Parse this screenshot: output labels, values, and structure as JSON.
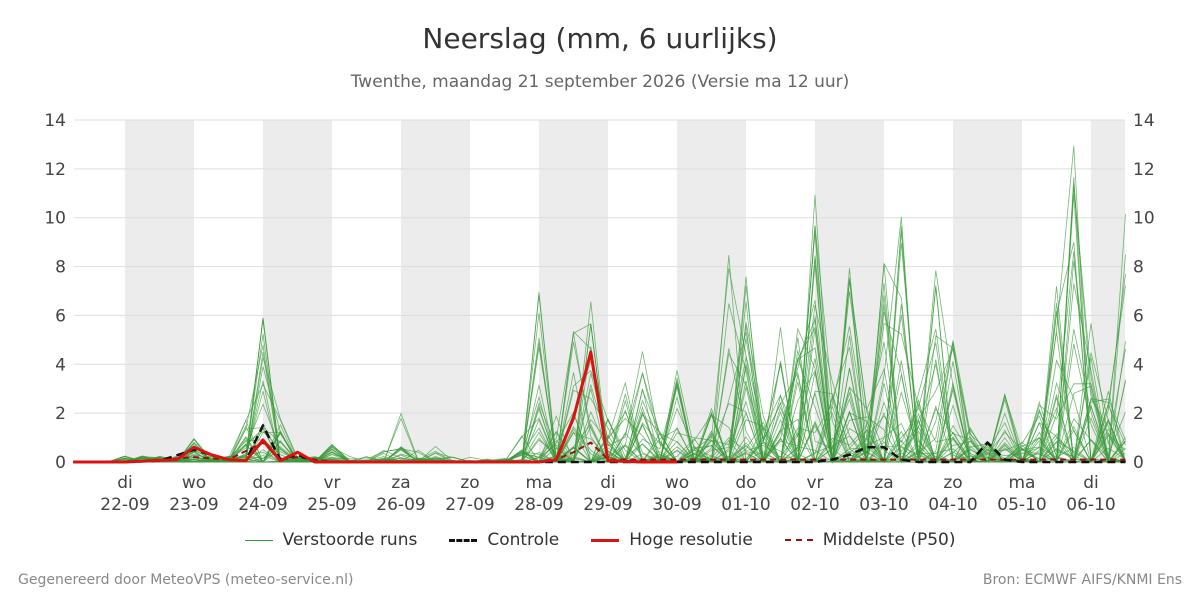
{
  "chart_data": {
    "type": "line",
    "title": "Neerslag (mm, 6 uurlijks)",
    "subtitle": "Twenthe, maandag 21 september 2026 (Versie ma 12 uur)",
    "ylim": [
      0,
      14
    ],
    "yticks": [
      0,
      2,
      4,
      6,
      8,
      10,
      12,
      14
    ],
    "xlim": [
      -0.5,
      14.5
    ],
    "x_ticks": [
      {
        "day": "di",
        "date": "22-09"
      },
      {
        "day": "wo",
        "date": "23-09"
      },
      {
        "day": "do",
        "date": "24-09"
      },
      {
        "day": "vr",
        "date": "25-09"
      },
      {
        "day": "za",
        "date": "26-09"
      },
      {
        "day": "zo",
        "date": "27-09"
      },
      {
        "day": "ma",
        "date": "28-09"
      },
      {
        "day": "di",
        "date": "29-09"
      },
      {
        "day": "wo",
        "date": "30-09"
      },
      {
        "day": "do",
        "date": "01-10"
      },
      {
        "day": "vr",
        "date": "02-10"
      },
      {
        "day": "za",
        "date": "03-10"
      },
      {
        "day": "zo",
        "date": "04-10"
      },
      {
        "day": "ma",
        "date": "05-10"
      },
      {
        "day": "di",
        "date": "06-10"
      }
    ],
    "shaded_days": [
      0,
      2,
      4,
      6,
      8,
      10,
      12,
      14
    ],
    "grid": true,
    "legend_position": "bottom",
    "colors": {
      "ensemble": "#3a9a3a",
      "control": "#111111",
      "hires": "#dd1111",
      "median": "#9b1111",
      "shade": "#ececec",
      "grid": "#dddddd"
    },
    "series": [
      {
        "name": "Controle",
        "style": "dashed",
        "x": [
          -0.75,
          0,
          0.5,
          1,
          1.25,
          1.5,
          1.75,
          2,
          2.25,
          2.5,
          2.75,
          3,
          4,
          5,
          6,
          7,
          8,
          9,
          10,
          10.25,
          10.5,
          10.75,
          11,
          11.25,
          11.5,
          12,
          12.25,
          12.5,
          12.75,
          13,
          14,
          14.5
        ],
        "y": [
          0,
          0,
          0.05,
          0.5,
          0.3,
          0.1,
          0.05,
          1.5,
          0.1,
          0.3,
          0,
          0,
          0,
          0,
          0,
          0,
          0,
          0,
          0,
          0.1,
          0.3,
          0.6,
          0.6,
          0.1,
          0,
          0,
          0,
          0.8,
          0.1,
          0,
          0,
          0
        ]
      },
      {
        "name": "Hoge resolutie",
        "style": "solid",
        "x": [
          -0.75,
          0,
          0.75,
          1,
          1.25,
          1.5,
          1.75,
          2,
          2.25,
          2.5,
          2.75,
          3,
          4,
          5,
          5.75,
          6,
          6.25,
          6.5,
          6.75,
          7,
          7.5,
          8
        ],
        "y": [
          0,
          0,
          0.1,
          0.6,
          0.3,
          0.1,
          0.05,
          0.9,
          0.05,
          0.4,
          0,
          0,
          0,
          0,
          0,
          0,
          0.1,
          1.8,
          4.5,
          0.05,
          0,
          0
        ]
      },
      {
        "name": "Middelste (P50)",
        "style": "dashed",
        "x": [
          -0.75,
          0,
          1,
          1.5,
          2,
          2.25,
          2.5,
          3,
          6,
          6.25,
          6.5,
          6.75,
          7,
          8,
          9,
          10,
          11,
          12,
          13,
          14,
          14.5
        ],
        "y": [
          0,
          0,
          0.2,
          0.1,
          0.8,
          0.1,
          0.2,
          0,
          0,
          0.1,
          0.4,
          0.8,
          0.1,
          0.1,
          0.1,
          0.1,
          0.1,
          0.1,
          0.1,
          0.1,
          0.1
        ]
      }
    ]
  },
  "legend": {
    "ensemble_label": "Verstoorde runs",
    "control_label": "Controle",
    "hires_label": "Hoge resolutie",
    "median_label": "Middelste (P50)"
  },
  "footer": {
    "left": "Gegenereerd door MeteoVPS (meteo-service.nl)",
    "right": "Bron: ECMWF AIFS/KNMI Ens"
  }
}
